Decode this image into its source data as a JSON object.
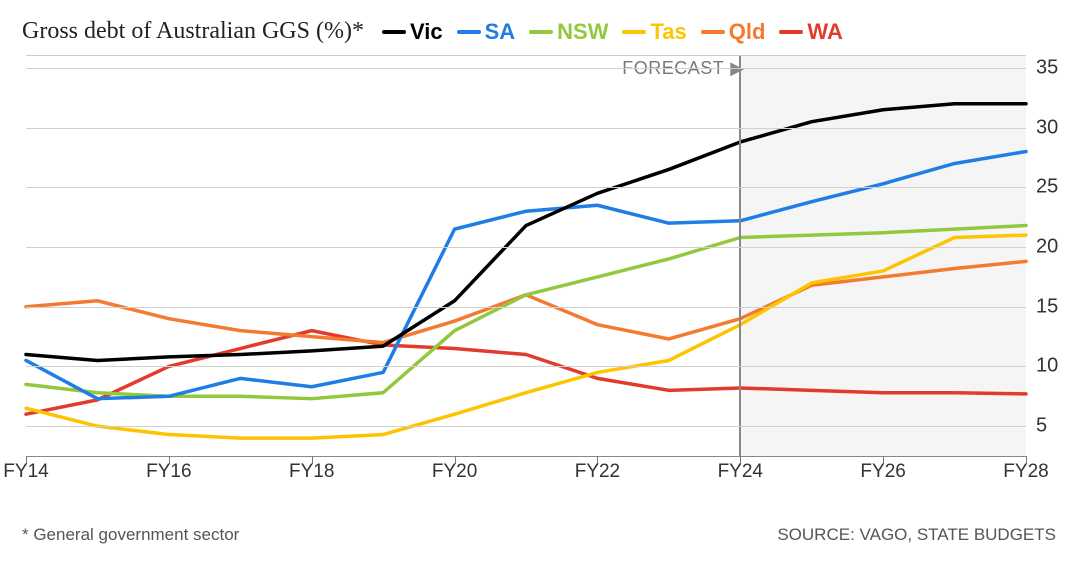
{
  "chart": {
    "type": "line",
    "title": "Gross debt of Australian GGS (%)*",
    "title_fontsize": 24,
    "footnote": "* General government sector",
    "source": "SOURCE: VAGO, STATE BUDGETS",
    "background_color": "#ffffff",
    "grid_color": "#d0d0d0",
    "line_width": 3.5,
    "font_family_labels": "Helvetica, Arial, sans-serif",
    "x": {
      "categories": [
        "FY14",
        "FY15",
        "FY16",
        "FY17",
        "FY18",
        "FY19",
        "FY20",
        "FY21",
        "FY22",
        "FY23",
        "FY24",
        "FY25",
        "FY26",
        "FY27",
        "FY28"
      ],
      "tick_labels": [
        "FY14",
        "FY16",
        "FY18",
        "FY20",
        "FY22",
        "FY24",
        "FY26",
        "FY28"
      ],
      "tick_indices": [
        0,
        2,
        4,
        6,
        8,
        10,
        12,
        14
      ],
      "label_fontsize": 19
    },
    "y": {
      "min": 2.5,
      "max": 36,
      "ticks": [
        5,
        10,
        15,
        20,
        25,
        30,
        35
      ],
      "label_fontsize": 20
    },
    "forecast": {
      "label": "FORECAST",
      "start_category": "FY24",
      "shade_color": "#eeeeee",
      "line_color": "#888888"
    },
    "legend": {
      "order": [
        "Vic",
        "SA",
        "NSW",
        "Tas",
        "Qld",
        "WA"
      ],
      "label_fontsize": 22,
      "label_fontweight": 700
    },
    "series": {
      "Vic": {
        "color": "#000000",
        "data": [
          11.0,
          10.5,
          10.8,
          11.0,
          11.3,
          11.7,
          15.5,
          21.8,
          24.5,
          26.5,
          28.8,
          30.5,
          31.5,
          32.0,
          32.0
        ]
      },
      "SA": {
        "color": "#1f7ee6",
        "data": [
          10.5,
          7.3,
          7.5,
          9.0,
          8.3,
          9.5,
          21.5,
          23.0,
          23.5,
          22.0,
          22.2,
          23.8,
          25.3,
          27.0,
          28.0
        ]
      },
      "NSW": {
        "color": "#93c83d",
        "data": [
          8.5,
          7.8,
          7.5,
          7.5,
          7.3,
          7.8,
          13.0,
          16.0,
          17.5,
          19.0,
          20.8,
          21.0,
          21.2,
          21.5,
          21.8
        ]
      },
      "Tas": {
        "color": "#fdc400",
        "data": [
          6.5,
          5.0,
          4.3,
          4.0,
          4.0,
          4.3,
          6.0,
          7.8,
          9.5,
          10.5,
          13.5,
          17.0,
          18.0,
          20.8,
          21.0
        ]
      },
      "Qld": {
        "color": "#f47a2d",
        "data": [
          15.0,
          15.5,
          14.0,
          13.0,
          12.5,
          12.0,
          13.8,
          16.0,
          13.5,
          12.3,
          14.0,
          16.8,
          17.5,
          18.2,
          18.8
        ]
      },
      "WA": {
        "color": "#e23b2e",
        "data": [
          6.0,
          7.2,
          10.0,
          11.5,
          13.0,
          11.8,
          11.5,
          11.0,
          9.0,
          8.0,
          8.2,
          8.0,
          7.8,
          7.8,
          7.7
        ]
      }
    }
  }
}
